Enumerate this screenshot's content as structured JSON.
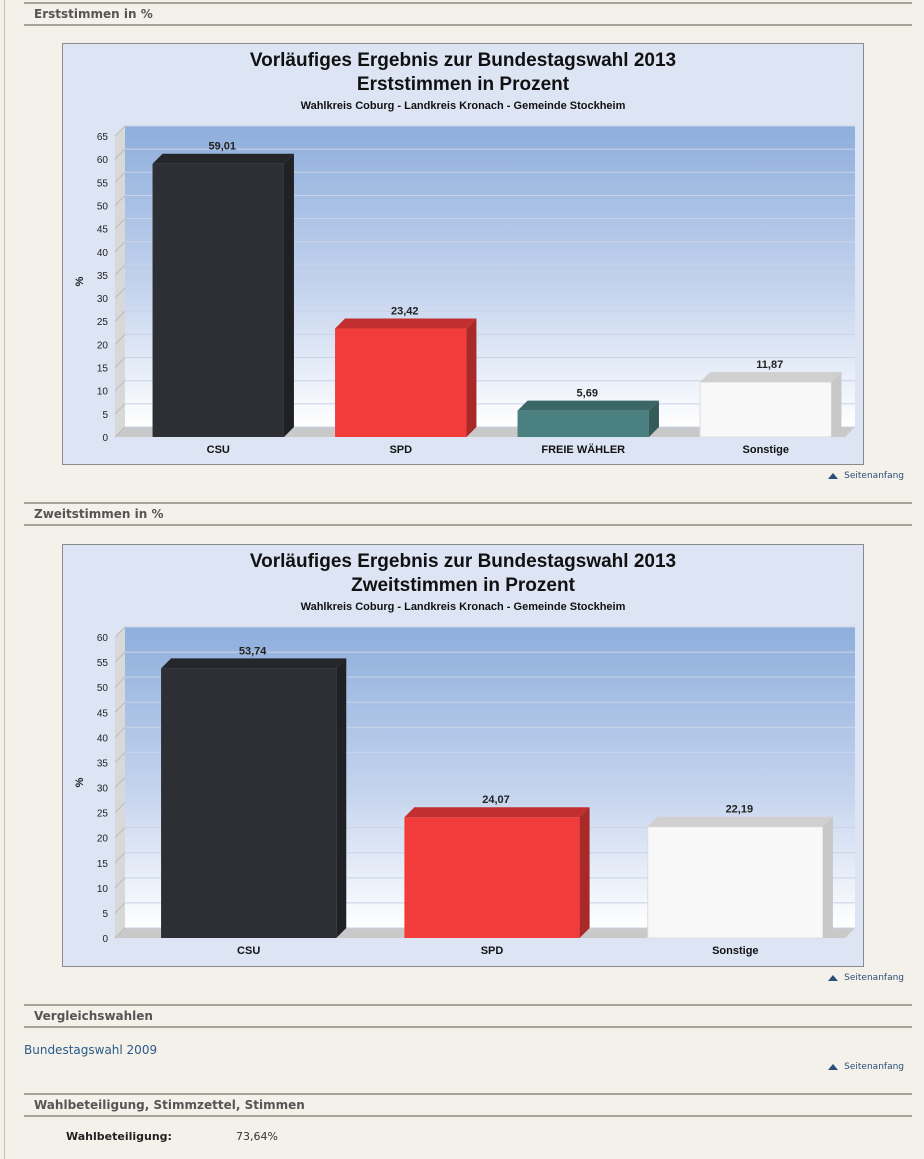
{
  "sections": {
    "erst": "Erststimmen in %",
    "zweit": "Zweitstimmen in %",
    "vergleich": "Vergleichswahlen",
    "beteiligung": "Wahlbeteiligung, Stimmzettel, Stimmen"
  },
  "toplink_label": "Seitenanfang",
  "comparison_link": "Bundestagswahl 2009",
  "turnout": {
    "label": "Wahlbeteiligung:",
    "value": "73,64%"
  },
  "colors": {
    "CSU": "#2e2f35",
    "SPD": "#f23b3b",
    "FREIE WÄHLER": "#4a8080",
    "Sonstige": "#f8f8f8"
  },
  "chart_data": [
    {
      "type": "bar",
      "title": "Vorläufiges Ergebnis zur Bundestagswahl 2013",
      "subtitle": "Erststimmen in Prozent",
      "caption": "Wahlkreis Coburg - Landkreis Kronach - Gemeinde Stockheim",
      "ylabel": "%",
      "ylim": [
        0,
        65
      ],
      "yticks": [
        0,
        5,
        10,
        15,
        20,
        25,
        30,
        35,
        40,
        45,
        50,
        55,
        60,
        65
      ],
      "categories": [
        "CSU",
        "SPD",
        "FREIE WÄHLER",
        "Sonstige"
      ],
      "values": [
        59.01,
        23.42,
        5.69,
        11.87
      ],
      "value_labels": [
        "59,01",
        "23,42",
        "5,69",
        "11,87"
      ]
    },
    {
      "type": "bar",
      "title": "Vorläufiges Ergebnis zur Bundestagswahl 2013",
      "subtitle": "Zweitstimmen in Prozent",
      "caption": "Wahlkreis Coburg - Landkreis Kronach - Gemeinde Stockheim",
      "ylabel": "%",
      "ylim": [
        0,
        60
      ],
      "yticks": [
        0,
        5,
        10,
        15,
        20,
        25,
        30,
        35,
        40,
        45,
        50,
        55,
        60
      ],
      "categories": [
        "CSU",
        "SPD",
        "Sonstige"
      ],
      "values": [
        53.74,
        24.07,
        22.19
      ],
      "value_labels": [
        "53,74",
        "24,07",
        "22,19"
      ]
    }
  ]
}
